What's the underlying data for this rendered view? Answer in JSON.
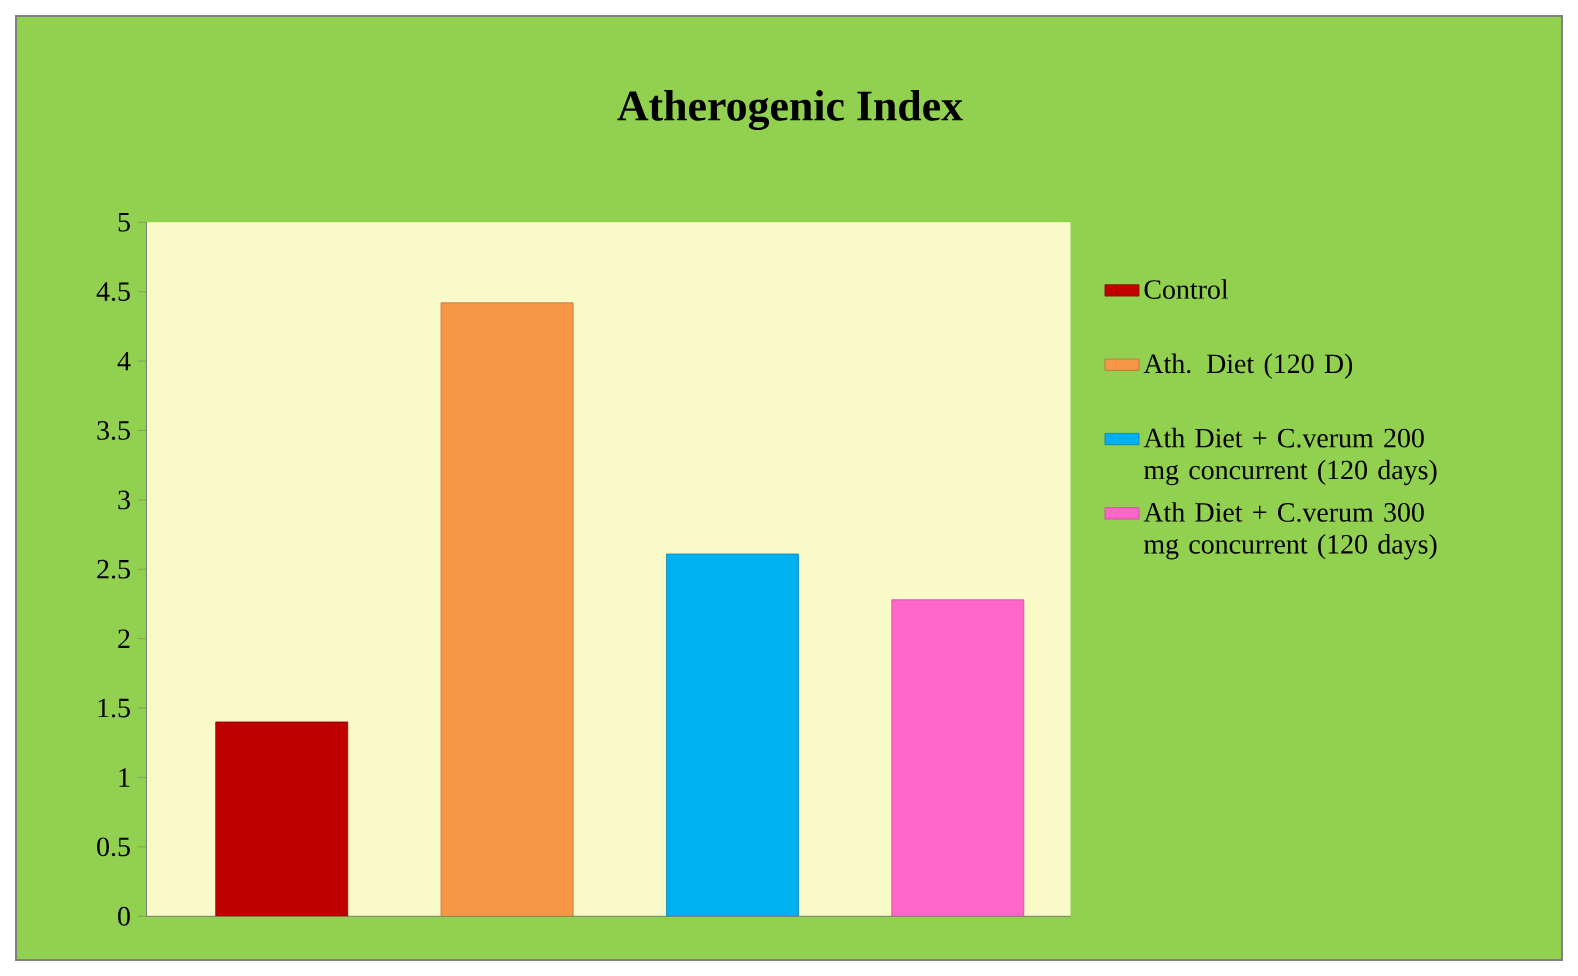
{
  "chart_data": {
    "type": "bar",
    "title": "Atherogenic Index",
    "categories": [
      null,
      null,
      null,
      null
    ],
    "series": [
      {
        "name": "Control",
        "color": "#c00000",
        "values": [
          1.4,
          null,
          null,
          null
        ]
      },
      {
        "name": "Ath. Diet (120 D)",
        "color": "#f79646",
        "values": [
          null,
          4.42,
          null,
          null
        ]
      },
      {
        "name": "Ath Diet + C.verum 200 mg concurrent (120 days)",
        "color": "#00b0f0",
        "values": [
          null,
          null,
          2.61,
          null
        ]
      },
      {
        "name": "Ath Diet + C.verum 300 mg concurrent (120 days)",
        "color": "#ff66cc",
        "values": [
          null,
          null,
          null,
          2.28
        ]
      }
    ],
    "ylim": [
      0,
      5
    ],
    "yticks": [
      0,
      0.5,
      1,
      1.5,
      2,
      2.5,
      3,
      3.5,
      4,
      4.5,
      5
    ],
    "legend": "right"
  }
}
